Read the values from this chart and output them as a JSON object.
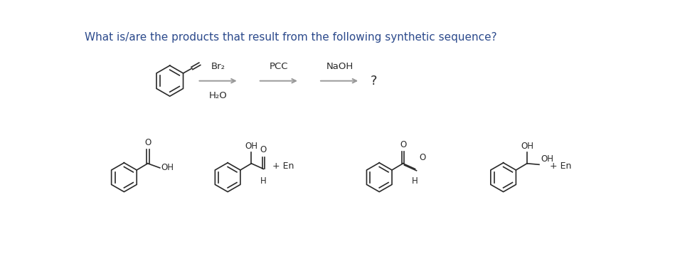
{
  "title": "What is/are the products that result from the following synthetic sequence?",
  "title_color": "#2c4a8c",
  "title_fontsize": 11,
  "background": "#ffffff",
  "sc": "#2a2a2a",
  "arrow_color": "#999999",
  "reagent1_top": "Br₂",
  "reagent1_bot": "H₂O",
  "reagent2": "PCC",
  "reagent3": "NaOH",
  "question_mark": "?",
  "plus_en": "+ En"
}
